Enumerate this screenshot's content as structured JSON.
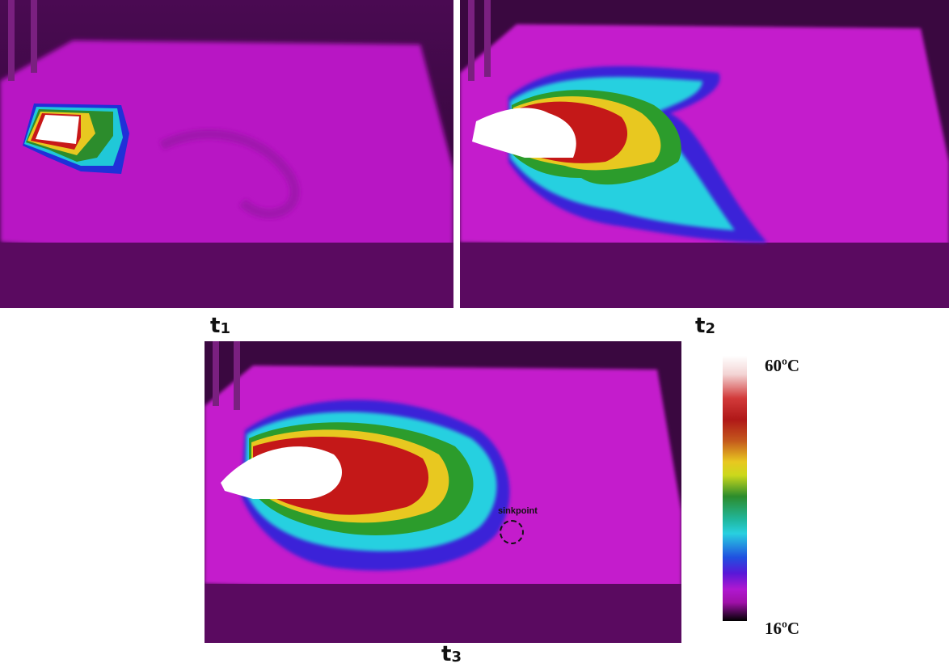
{
  "panels": {
    "t1": {
      "label_main": "t",
      "label_sub": "1"
    },
    "t2": {
      "label_main": "t",
      "label_sub": "2"
    },
    "t3": {
      "label_main": "t",
      "label_sub": "3",
      "annotation": "sinkpoint"
    }
  },
  "colorbar": {
    "max_label": "60ºC",
    "min_label": "16ºC",
    "colors": [
      "#ffffff",
      "#d23a3a",
      "#b01818",
      "#e8c820",
      "#2c8c2c",
      "#28d0e0",
      "#2050e0",
      "#b018d0",
      "#000000"
    ]
  }
}
